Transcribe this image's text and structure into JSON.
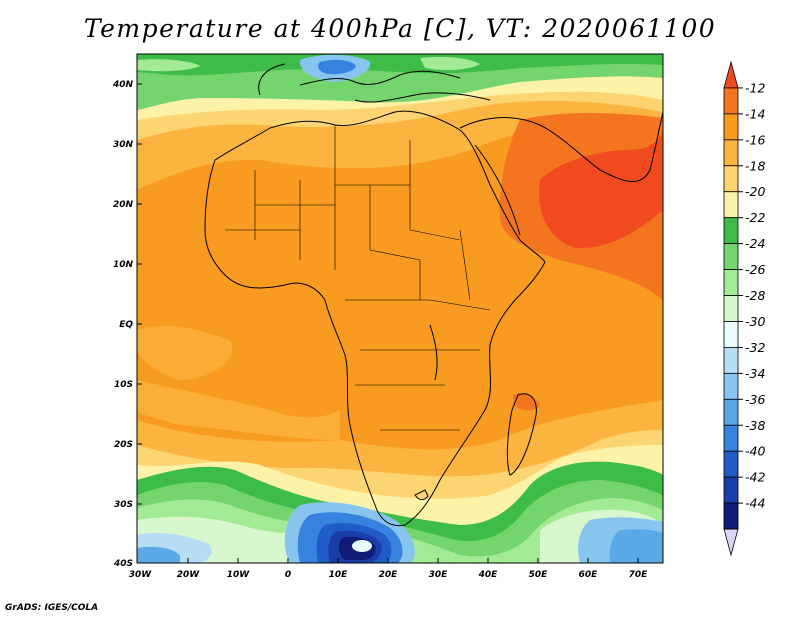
{
  "title": "Temperature at 400hPa [C], VT: 2020061100",
  "credit": "GrADS: IGES/COLA",
  "map": {
    "lat_labels": [
      "40N",
      "30N",
      "20N",
      "10N",
      "EQ",
      "10S",
      "20S",
      "30S",
      "40S"
    ],
    "lon_labels": [
      "30W",
      "20W",
      "10W",
      "0",
      "10E",
      "20E",
      "30E",
      "40E",
      "50E",
      "60E",
      "70E"
    ]
  },
  "colorbar": {
    "labels": [
      "-12",
      "-14",
      "-16",
      "-18",
      "-20",
      "-22",
      "-24",
      "-26",
      "-28",
      "-30",
      "-32",
      "-34",
      "-36",
      "-38",
      "-40",
      "-42",
      "-44"
    ],
    "colors": [
      "#f04a1e",
      "#f3751f",
      "#f89b20",
      "#fbb440",
      "#fcd572",
      "#fcf2a8",
      "#3dbd47",
      "#74d56f",
      "#a3ea95",
      "#d8f7cf",
      "#e8fbfd",
      "#b5ddf4",
      "#87c5ee",
      "#5aa8e6",
      "#3782dc",
      "#1f5cc8",
      "#1a3ea9",
      "#101c78",
      "#dcd5fa"
    ]
  },
  "colors": {
    "land_outline": "#000000",
    "background": "#ffffff"
  }
}
